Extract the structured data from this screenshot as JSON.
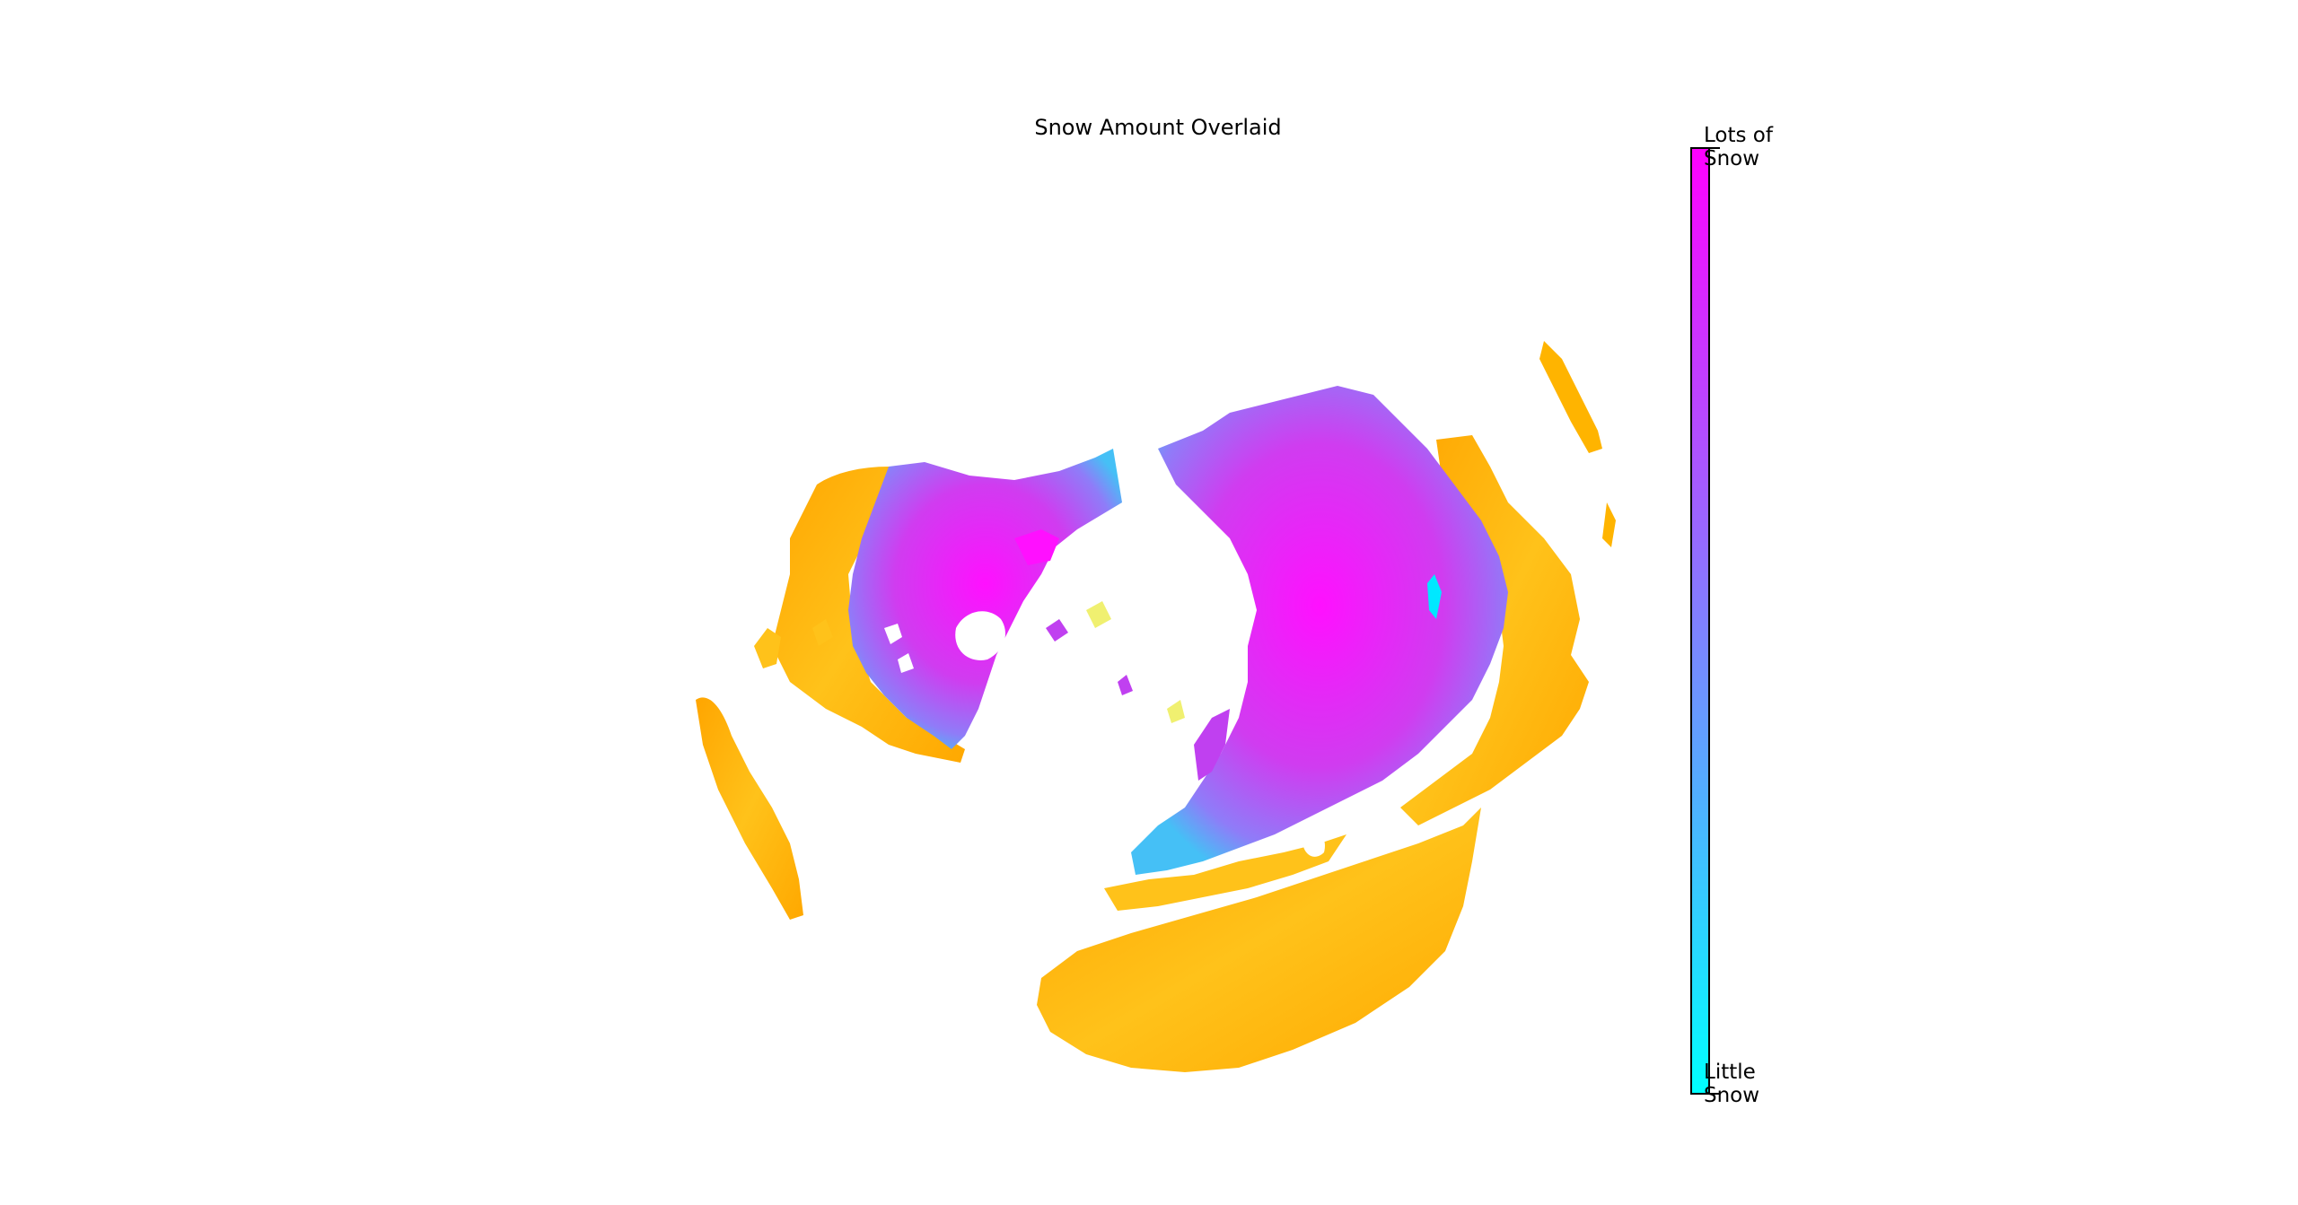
{
  "title": "Snow Amount Overlaid",
  "colorbar": {
    "top_label": "Lots of\nSnow",
    "bottom_label": "Little\nSnow",
    "color_top": "#ff00ff",
    "color_bottom": "#00ffff"
  },
  "map": {
    "projection": "orthographic-north-pole",
    "land_colors": [
      "#ffa500",
      "#ffc21a",
      "#ffe23a",
      "#f2f060"
    ],
    "snow_colormap": "cool"
  }
}
